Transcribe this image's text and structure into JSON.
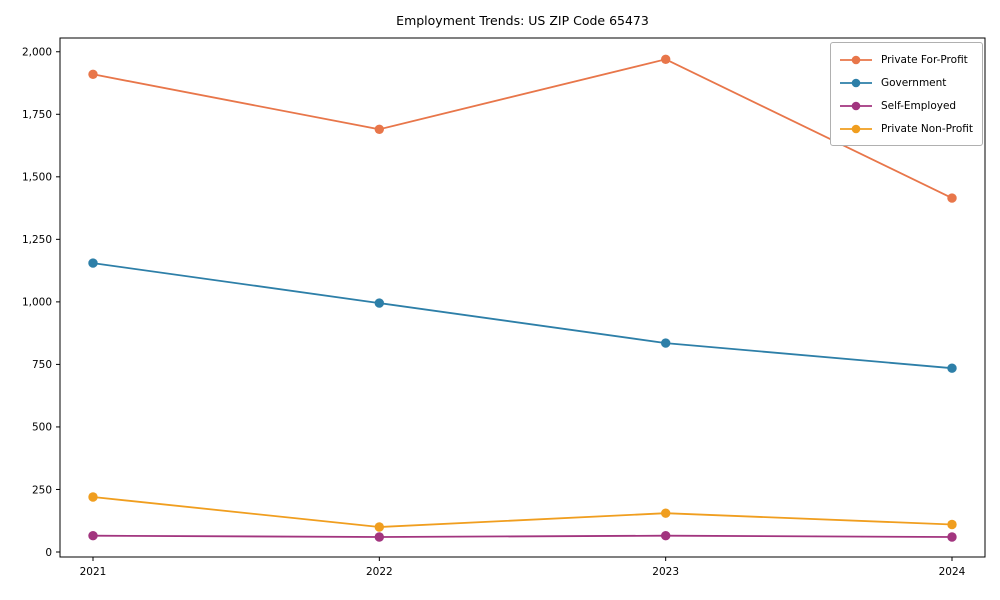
{
  "figure": {
    "background_color": "#ffffff",
    "frame_color": "#000000"
  },
  "chart_data": {
    "type": "line",
    "title": "Employment Trends: US ZIP Code 65473",
    "xlabel": "",
    "ylabel": "",
    "x": [
      2021,
      2022,
      2023,
      2024
    ],
    "xticklabels": [
      "2021",
      "2022",
      "2023",
      "2024"
    ],
    "yticks": [
      {
        "value": 0,
        "label": "0"
      },
      {
        "value": 250,
        "label": "250"
      },
      {
        "value": 500,
        "label": "500"
      },
      {
        "value": 750,
        "label": "750"
      },
      {
        "value": 1000,
        "label": "1,000"
      },
      {
        "value": 1250,
        "label": "1,250"
      },
      {
        "value": 1500,
        "label": "1,500"
      },
      {
        "value": 1750,
        "label": "1,750"
      },
      {
        "value": 2000,
        "label": "2,000"
      }
    ],
    "ylim": [
      0,
      2000
    ],
    "grid": false,
    "legend_position": "upper right",
    "series": [
      {
        "name": "Private For-Profit",
        "color": "#e8764a",
        "values": [
          1910,
          1690,
          1970,
          1415
        ]
      },
      {
        "name": "Government",
        "color": "#2d7fa8",
        "values": [
          1155,
          995,
          835,
          735
        ]
      },
      {
        "name": "Self-Employed",
        "color": "#a2357f",
        "values": [
          65,
          60,
          65,
          60
        ]
      },
      {
        "name": "Private Non-Profit",
        "color": "#f09e1f",
        "values": [
          220,
          100,
          155,
          110
        ]
      }
    ]
  }
}
